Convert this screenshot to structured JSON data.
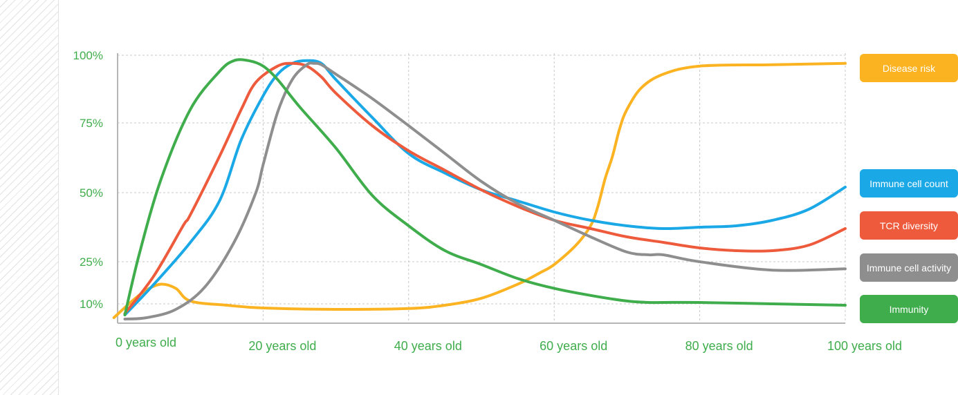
{
  "chart_data": {
    "type": "line",
    "title": "",
    "xlabel": "",
    "ylabel": "",
    "x_tick_labels": [
      "0 years old",
      "20 years old",
      "40 years old",
      "60 years old",
      "80 years old",
      "100 years old"
    ],
    "x_ticks": [
      0,
      20,
      40,
      60,
      80,
      100
    ],
    "y_tick_labels": [
      "100%",
      "75%",
      "50%",
      "25%",
      "10%"
    ],
    "y_ticks": [
      100,
      75,
      50,
      25,
      10
    ],
    "xlim": [
      0,
      100
    ],
    "ylim": [
      3,
      100
    ],
    "grid": true,
    "legend_position": "right",
    "series": [
      {
        "name": "Disease risk",
        "color": "#fbb322",
        "x": [
          -0.5,
          2,
          4,
          6,
          8,
          10,
          15,
          20,
          30,
          40,
          45,
          50,
          55,
          58,
          60,
          63,
          65,
          66,
          67,
          68,
          69,
          70,
          72,
          75,
          80,
          90,
          100
        ],
        "y": [
          5,
          11,
          15,
          17,
          15.5,
          11,
          9.5,
          8.5,
          8,
          8.3,
          9.5,
          12,
          17,
          21,
          24,
          31,
          38,
          45,
          55,
          63,
          73,
          80,
          88,
          93,
          96,
          96.5,
          97
        ]
      },
      {
        "name": "Immune cell count",
        "color": "#1aa8e6",
        "x": [
          1,
          5,
          10,
          14,
          17,
          20,
          22,
          24,
          26,
          28,
          30,
          35,
          40,
          45,
          50,
          55,
          60,
          65,
          70,
          75,
          80,
          85,
          90,
          95,
          100
        ],
        "y": [
          6,
          17,
          32,
          47,
          69,
          85,
          93,
          97,
          98,
          97,
          91,
          77,
          64,
          57,
          51,
          47,
          43,
          40,
          38,
          37,
          37.5,
          38,
          40,
          44,
          52
        ]
      },
      {
        "name": "TCR diversity",
        "color": "#ee5a3c",
        "x": [
          1,
          5,
          9,
          10,
          14,
          17,
          19,
          22,
          24,
          26,
          28,
          30,
          35,
          40,
          45,
          50,
          55,
          60,
          65,
          70,
          75,
          80,
          85,
          90,
          95,
          100
        ],
        "y": [
          6.5,
          20,
          38,
          42,
          63,
          80,
          90,
          96,
          97,
          96,
          92,
          86,
          74,
          65,
          58,
          51,
          45,
          40,
          37,
          34,
          32,
          30,
          29,
          29,
          31,
          37
        ]
      },
      {
        "name": "Immune cell activity",
        "color": "#8e8e8e",
        "x": [
          1,
          4,
          8,
          12,
          16,
          19,
          20,
          22,
          24,
          26,
          27,
          28,
          30,
          35,
          40,
          45,
          50,
          55,
          60,
          65,
          70,
          73,
          75,
          80,
          90,
          100
        ],
        "y": [
          4.5,
          5,
          8,
          16,
          32,
          50,
          60,
          79,
          91,
          96.5,
          97,
          96.5,
          93,
          84,
          74,
          64,
          54,
          46,
          40,
          34,
          28.5,
          27.5,
          27.5,
          25,
          22,
          22.5
        ]
      },
      {
        "name": "Immunity",
        "color": "#3fad4b",
        "x": [
          1,
          3,
          6,
          10,
          14,
          16,
          18,
          20,
          22,
          25,
          30,
          35,
          40,
          45,
          50,
          55,
          60,
          65,
          70,
          73,
          75,
          80,
          90,
          100
        ],
        "y": [
          6,
          28,
          55,
          80,
          94,
          98,
          98,
          96,
          91,
          81,
          66,
          49,
          38,
          29,
          24,
          19,
          15.5,
          13,
          11,
          10.5,
          10.5,
          10.5,
          10,
          9.5
        ]
      }
    ]
  }
}
